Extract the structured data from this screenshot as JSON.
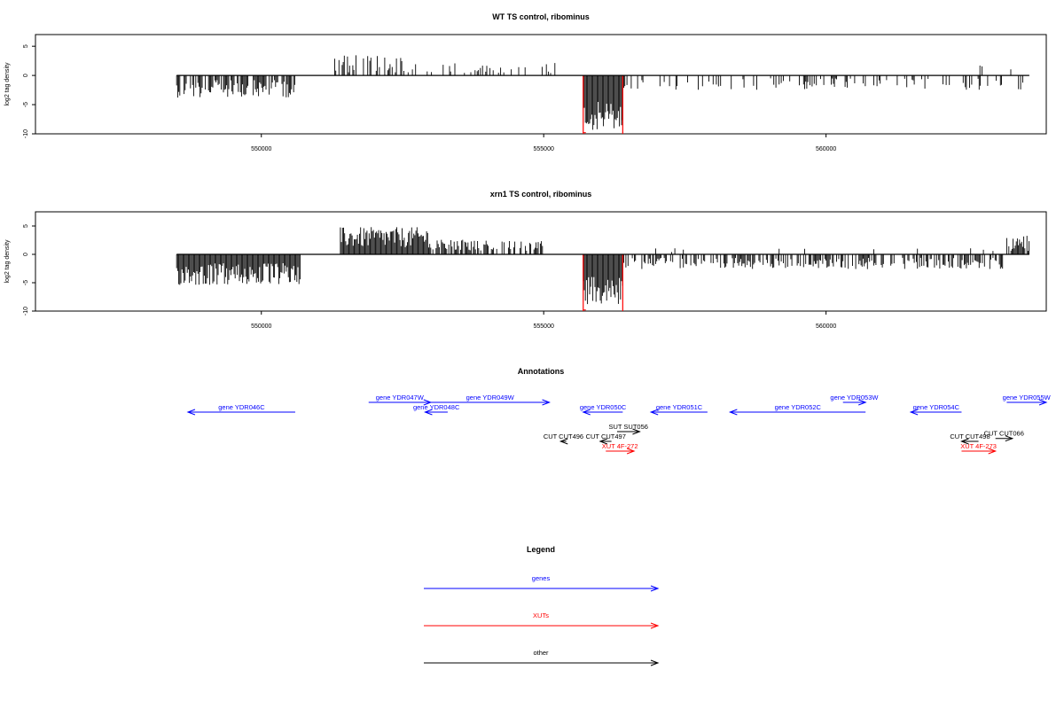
{
  "chart_data": [
    {
      "type": "bar",
      "title": "WT TS control, ribominus",
      "ylabel": "log2 tag density",
      "ylim": [
        -10,
        7
      ],
      "xlim": [
        546000,
        563900
      ],
      "xticks": [
        550000,
        555000,
        560000
      ],
      "xtick_labels": [
        "550000",
        "555000",
        "560000"
      ],
      "yticks": [
        -10,
        -5,
        0,
        5
      ],
      "ytick_labels": [
        "-10",
        "-5",
        "0",
        "5"
      ],
      "baseline_range": [
        548500,
        563600
      ],
      "highlight_range": [
        555700,
        556400
      ],
      "highlight_color": "#ff0000",
      "bar_color": "#000000",
      "segments": [
        {
          "range": [
            548500,
            550600
          ],
          "sign": -1,
          "avg": 2.3,
          "var": 1.5,
          "density": 0.7
        },
        {
          "range": [
            551300,
            552900
          ],
          "sign": 1,
          "avg": 2.0,
          "var": 1.6,
          "density": 0.45
        },
        {
          "range": [
            552900,
            555200
          ],
          "sign": 1,
          "avg": 1.3,
          "var": 0.9,
          "density": 0.22
        },
        {
          "range": [
            555700,
            556400
          ],
          "sign": -1,
          "avg": 7.0,
          "var": 2.5,
          "density": 1.0
        },
        {
          "range": [
            556400,
            563600
          ],
          "sign": -1,
          "avg": 1.5,
          "var": 1.0,
          "density": 0.22
        },
        {
          "range": [
            562500,
            563600
          ],
          "sign": 1,
          "avg": 1.0,
          "var": 0.8,
          "density": 0.03
        }
      ]
    },
    {
      "type": "bar",
      "title": "xrn1 TS control, ribominus",
      "ylabel": "log2 tag density",
      "ylim": [
        -10,
        7.5
      ],
      "xlim": [
        546000,
        563900
      ],
      "xticks": [
        550000,
        555000,
        560000
      ],
      "xtick_labels": [
        "550000",
        "555000",
        "560000"
      ],
      "yticks": [
        -10,
        -5,
        0,
        5
      ],
      "ytick_labels": [
        "-10",
        "-5",
        "0",
        "5"
      ],
      "baseline_range": [
        548500,
        563600
      ],
      "highlight_range": [
        555700,
        556400
      ],
      "highlight_color": "#ff0000",
      "bar_color": "#000000",
      "segments": [
        {
          "range": [
            548500,
            550700
          ],
          "sign": -1,
          "avg": 3.5,
          "var": 2.0,
          "density": 1.0
        },
        {
          "range": [
            551400,
            553000
          ],
          "sign": 1,
          "avg": 3.0,
          "var": 1.8,
          "density": 1.0
        },
        {
          "range": [
            553000,
            555000
          ],
          "sign": 1,
          "avg": 1.6,
          "var": 1.0,
          "density": 0.55
        },
        {
          "range": [
            555700,
            556400
          ],
          "sign": -1,
          "avg": 6.5,
          "var": 2.5,
          "density": 1.0
        },
        {
          "range": [
            556400,
            563200
          ],
          "sign": -1,
          "avg": 1.6,
          "var": 1.0,
          "density": 0.55
        },
        {
          "range": [
            556400,
            563200
          ],
          "sign": 1,
          "avg": 0.6,
          "var": 0.5,
          "density": 0.05
        },
        {
          "range": [
            563200,
            563600
          ],
          "sign": 1,
          "avg": 2.0,
          "var": 1.5,
          "density": 0.8
        }
      ]
    }
  ],
  "annotations": {
    "title": "Annotations",
    "items": [
      {
        "label": "gene YDR046C",
        "from": 550600,
        "to": 548700,
        "row": 1,
        "color": "#0000ff"
      },
      {
        "label": "gene YDR047W",
        "from": 551900,
        "to": 553000,
        "row": 0,
        "color": "#0000ff"
      },
      {
        "label": "gene YDR048C",
        "from": 553300,
        "to": 552900,
        "row": 1,
        "color": "#0000ff"
      },
      {
        "label": "gene YDR049W",
        "from": 553000,
        "to": 555100,
        "row": 0,
        "color": "#0000ff"
      },
      {
        "label": "gene YDR050C",
        "from": 556400,
        "to": 555700,
        "row": 1,
        "color": "#0000ff"
      },
      {
        "label": "gene YDR051C",
        "from": 557900,
        "to": 556900,
        "row": 1,
        "color": "#0000ff"
      },
      {
        "label": "gene YDR052C",
        "from": 560700,
        "to": 558300,
        "row": 1,
        "color": "#0000ff"
      },
      {
        "label": "gene YDR053W",
        "from": 560300,
        "to": 560700,
        "row": 0,
        "color": "#0000ff"
      },
      {
        "label": "gene YDR054C",
        "from": 562400,
        "to": 561500,
        "row": 1,
        "color": "#0000ff"
      },
      {
        "label": "gene YDR055W",
        "from": 563200,
        "to": 563900,
        "row": 0,
        "color": "#0000ff"
      },
      {
        "label": "SUT SUT056",
        "from": 556300,
        "to": 556700,
        "row": 3,
        "color": "#000000"
      },
      {
        "label": "CUT CUT496",
        "from": 555400,
        "to": 555300,
        "row": 4,
        "color": "#000000"
      },
      {
        "label": "CUT CUT497",
        "from": 556200,
        "to": 556000,
        "row": 4,
        "color": "#000000"
      },
      {
        "label": "XUT 4F-272",
        "from": 556100,
        "to": 556600,
        "row": 5,
        "color": "#ff0000"
      },
      {
        "label": "CUT CUT066",
        "from": 563000,
        "to": 563300,
        "row": 3.7,
        "color": "#000000"
      },
      {
        "label": "CUT CUT498",
        "from": 562700,
        "to": 562400,
        "row": 4,
        "color": "#000000"
      },
      {
        "label": "XUT 4F-273",
        "from": 562400,
        "to": 563000,
        "row": 5,
        "color": "#ff0000"
      }
    ]
  },
  "legend": {
    "title": "Legend",
    "items": [
      {
        "label": "genes",
        "color": "#0000ff"
      },
      {
        "label": "XUTs",
        "color": "#ff0000"
      },
      {
        "label": "other",
        "color": "#000000"
      }
    ]
  }
}
